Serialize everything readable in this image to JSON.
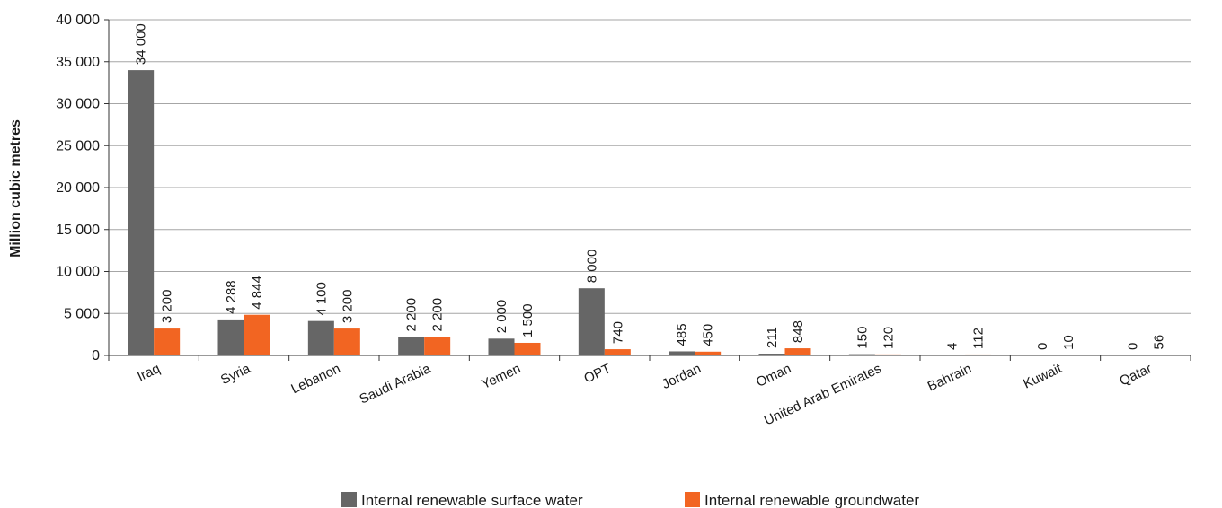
{
  "chart_data": {
    "type": "bar",
    "title": "",
    "xlabel": "",
    "ylabel": "Million cubic metres",
    "ylim": [
      0,
      40000
    ],
    "yticks": [
      0,
      5000,
      10000,
      15000,
      20000,
      25000,
      30000,
      35000,
      40000
    ],
    "ytick_labels": [
      "0",
      "5 000",
      "10 000",
      "15 000",
      "20 000",
      "25 000",
      "30 000",
      "35 000",
      "40 000"
    ],
    "grid": true,
    "legend_position": "bottom",
    "categories": [
      "Iraq",
      "Syria",
      "Lebanon",
      "Saudi Arabia",
      "Yemen",
      "OPT",
      "Jordan",
      "Oman",
      "United Arab Emirates",
      "Bahrain",
      "Kuwait",
      "Qatar"
    ],
    "series": [
      {
        "name": "Internal renewable surface water",
        "color": "#666666",
        "values": [
          34000,
          4288,
          4100,
          2200,
          2000,
          8000,
          485,
          211,
          150,
          4,
          0,
          0
        ],
        "labels": [
          "34 000",
          "4 288",
          "4 100",
          "2 200",
          "2 000",
          "8 000",
          "485",
          "211",
          "150",
          "4",
          "0",
          "0"
        ]
      },
      {
        "name": "Internal renewable groundwater",
        "color": "#f26522",
        "values": [
          3200,
          4844,
          3200,
          2200,
          1500,
          740,
          450,
          848,
          120,
          112,
          10,
          56
        ],
        "labels": [
          "3 200",
          "4 844",
          "3 200",
          "2 200",
          "1 500",
          "740",
          "450",
          "848",
          "120",
          "112",
          "10",
          "56"
        ]
      }
    ]
  }
}
